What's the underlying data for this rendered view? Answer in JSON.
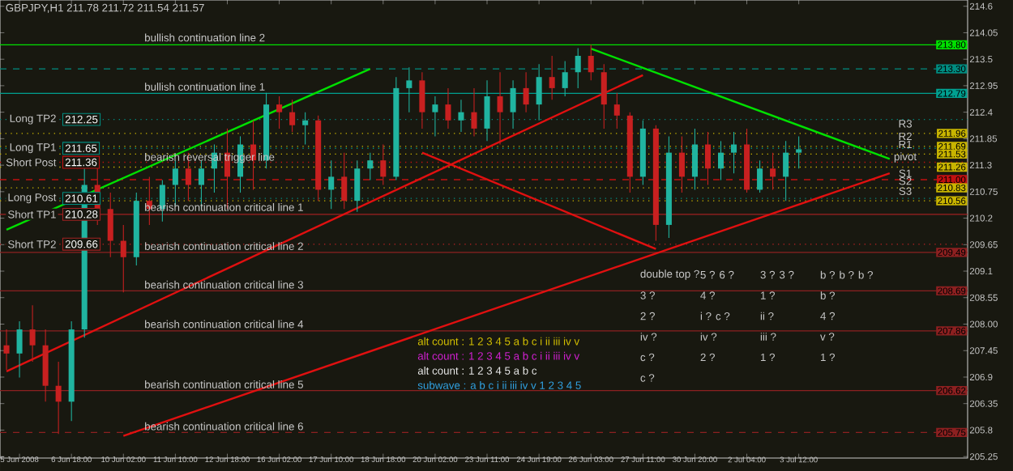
{
  "chart_data": {
    "type": "candlestick",
    "title": "GBPJPY,H1 211.78 211.72 211.54 211.57",
    "categories": [
      null,
      "5 Jun 2008",
      null,
      null,
      null,
      "6 Jun 18:00",
      null,
      null,
      null,
      "10 Jun 02:00",
      null,
      null,
      null,
      "11 Jun 10:00",
      null,
      null,
      null,
      "12 Jun 18:00",
      null,
      null,
      null,
      "16 Jun 02:00",
      null,
      null,
      null,
      "17 Jun 10:00",
      null,
      null,
      null,
      "18 Jun 18:00",
      null,
      null,
      null,
      "20 Jun 02:00",
      null,
      null,
      null,
      "23 Jun 11:00",
      null,
      null,
      null,
      "24 Jun 19:00",
      null,
      null,
      null,
      "26 Jun 03:00",
      null,
      null,
      null,
      "27 Jun 11:00",
      null,
      null,
      null,
      "30 Jun 20:00",
      null,
      null,
      null,
      "2 Jul 04:00",
      null,
      null,
      null,
      "3 Jul 12:00",
      null,
      null,
      null,
      null,
      null,
      null,
      null,
      null,
      null,
      null,
      null,
      null,
      null
    ],
    "ohlc": [
      [
        207.56,
        207.89,
        207.05,
        207.39
      ],
      [
        207.39,
        208.06,
        206.89,
        207.89
      ],
      [
        207.89,
        208.39,
        207.22,
        207.56
      ],
      [
        207.56,
        207.89,
        206.39,
        206.72
      ],
      [
        206.72,
        207.22,
        205.72,
        206.39
      ],
      [
        206.39,
        208.06,
        205.99,
        207.89
      ],
      [
        207.89,
        211.23,
        207.72,
        210.89
      ],
      [
        210.89,
        211.4,
        210.06,
        210.39
      ],
      [
        210.39,
        210.73,
        209.39,
        209.73
      ],
      [
        209.73,
        210.06,
        208.66,
        209.39
      ],
      [
        209.39,
        210.73,
        209.22,
        210.56
      ],
      [
        210.56,
        211.06,
        210.06,
        210.39
      ],
      [
        210.39,
        210.99,
        210.13,
        210.89
      ],
      [
        210.89,
        211.4,
        210.46,
        211.23
      ],
      [
        211.23,
        211.56,
        210.56,
        210.89
      ],
      [
        210.89,
        211.4,
        210.39,
        211.23
      ],
      [
        211.23,
        211.73,
        210.73,
        211.56
      ],
      [
        211.56,
        212.06,
        210.39,
        211.06
      ],
      [
        211.06,
        211.9,
        210.73,
        211.73
      ],
      [
        211.73,
        212.23,
        210.79,
        211.4
      ],
      [
        211.4,
        212.8,
        211.23,
        212.56
      ],
      [
        212.56,
        212.73,
        212.06,
        212.4
      ],
      [
        212.4,
        212.66,
        211.99,
        212.13
      ],
      [
        212.13,
        212.4,
        211.73,
        212.23
      ],
      [
        212.23,
        212.33,
        210.56,
        210.79
      ],
      [
        210.79,
        211.4,
        210.39,
        211.06
      ],
      [
        211.06,
        211.56,
        210.39,
        210.56
      ],
      [
        210.56,
        211.4,
        210.33,
        211.23
      ],
      [
        211.23,
        211.56,
        210.99,
        211.4
      ],
      [
        211.4,
        211.73,
        210.89,
        211.06
      ],
      [
        211.06,
        213.13,
        210.99,
        212.9
      ],
      [
        212.9,
        213.33,
        212.4,
        213.06
      ],
      [
        213.06,
        213.23,
        212.06,
        212.4
      ],
      [
        212.4,
        212.73,
        211.9,
        212.56
      ],
      [
        212.56,
        212.9,
        212.06,
        212.23
      ],
      [
        212.23,
        212.66,
        211.99,
        212.4
      ],
      [
        212.4,
        212.9,
        211.9,
        212.06
      ],
      [
        212.06,
        213.06,
        211.8,
        212.73
      ],
      [
        212.73,
        213.23,
        211.73,
        212.4
      ],
      [
        212.4,
        213.06,
        212.06,
        212.9
      ],
      [
        212.9,
        213.23,
        212.4,
        212.56
      ],
      [
        212.56,
        213.4,
        212.23,
        213.13
      ],
      [
        213.13,
        213.57,
        212.66,
        212.9
      ],
      [
        212.9,
        213.46,
        212.73,
        213.23
      ],
      [
        213.23,
        213.73,
        212.9,
        213.57
      ],
      [
        213.57,
        213.8,
        213.06,
        213.23
      ],
      [
        213.23,
        213.4,
        212.06,
        212.56
      ],
      [
        212.56,
        212.8,
        212.06,
        212.33
      ],
      [
        212.33,
        212.4,
        210.73,
        211.06
      ],
      [
        211.06,
        212.23,
        210.89,
        212.06
      ],
      [
        212.06,
        212.13,
        209.73,
        210.06
      ],
      [
        210.06,
        211.9,
        209.79,
        211.56
      ],
      [
        211.56,
        211.9,
        210.73,
        211.06
      ],
      [
        211.06,
        212.06,
        210.79,
        211.73
      ],
      [
        211.73,
        211.99,
        210.89,
        211.23
      ],
      [
        211.23,
        211.8,
        210.99,
        211.56
      ],
      [
        211.56,
        211.99,
        211.13,
        211.73
      ],
      [
        211.73,
        212.06,
        210.73,
        210.79
      ],
      [
        210.79,
        211.4,
        210.73,
        211.23
      ],
      [
        211.23,
        211.56,
        210.79,
        211.06
      ],
      [
        211.06,
        211.8,
        210.56,
        211.56
      ],
      [
        211.56,
        211.9,
        211.23,
        211.63
      ],
      null,
      null,
      null,
      null,
      null,
      null,
      null,
      null,
      null,
      null,
      null,
      null,
      null
    ],
    "series": [
      {
        "type": "line",
        "color": "#00e000",
        "values": [
          209.96,
          null,
          null,
          null,
          null,
          null,
          null,
          null,
          null,
          null,
          null,
          null,
          null,
          null,
          null,
          null,
          null,
          null,
          null,
          null,
          null,
          null,
          null,
          null,
          null,
          null,
          null,
          null,
          213.3,
          null,
          null,
          null,
          null,
          null,
          null,
          null,
          null,
          null,
          null,
          null,
          null,
          null,
          null,
          null,
          null,
          null,
          null,
          null,
          null,
          null,
          null,
          null,
          null,
          null,
          null,
          null,
          null,
          null,
          null,
          null,
          null,
          null,
          null,
          null,
          null,
          null,
          null,
          null,
          null,
          null,
          null,
          null,
          null,
          null,
          null
        ]
      },
      {
        "type": "line",
        "color": "#00e000",
        "values": [
          null,
          null,
          null,
          null,
          null,
          null,
          null,
          null,
          null,
          null,
          null,
          null,
          null,
          null,
          null,
          null,
          null,
          null,
          null,
          null,
          null,
          null,
          null,
          null,
          null,
          null,
          null,
          null,
          null,
          null,
          null,
          null,
          null,
          null,
          null,
          null,
          null,
          null,
          null,
          null,
          null,
          null,
          null,
          null,
          null,
          213.72,
          null,
          null,
          null,
          null,
          null,
          null,
          null,
          null,
          null,
          null,
          null,
          null,
          null,
          null,
          null,
          null,
          null,
          null,
          null,
          null,
          null,
          null,
          211.43,
          null,
          null,
          null,
          null,
          null,
          null
        ]
      },
      {
        "type": "line",
        "color": "#e01010",
        "values": [
          207.02,
          null,
          null,
          null,
          null,
          null,
          null,
          null,
          null,
          null,
          null,
          null,
          null,
          null,
          null,
          null,
          null,
          null,
          null,
          null,
          null,
          null,
          null,
          null,
          null,
          null,
          null,
          null,
          null,
          null,
          null,
          null,
          null,
          null,
          null,
          null,
          null,
          null,
          null,
          null,
          null,
          null,
          null,
          null,
          null,
          null,
          null,
          null,
          null,
          213.17,
          null,
          null,
          null,
          null,
          null,
          null,
          null,
          null,
          null,
          null,
          null,
          null,
          null,
          null,
          null,
          null,
          null,
          null,
          null,
          null,
          null,
          null,
          null,
          null,
          null
        ]
      },
      {
        "type": "line",
        "color": "#e01010",
        "values": [
          null,
          null,
          null,
          null,
          null,
          null,
          null,
          null,
          null,
          205.68,
          null,
          null,
          null,
          null,
          null,
          null,
          null,
          null,
          null,
          null,
          null,
          null,
          null,
          null,
          null,
          null,
          null,
          null,
          null,
          null,
          null,
          null,
          null,
          null,
          null,
          null,
          null,
          null,
          null,
          null,
          null,
          null,
          null,
          null,
          null,
          null,
          null,
          null,
          null,
          null,
          null,
          null,
          null,
          null,
          null,
          null,
          null,
          null,
          null,
          null,
          null,
          null,
          null,
          null,
          null,
          null,
          null,
          null,
          211.13,
          null,
          null,
          null,
          null,
          null,
          null
        ]
      },
      {
        "type": "line",
        "color": "#e01010",
        "values": [
          null,
          null,
          null,
          null,
          null,
          null,
          null,
          null,
          null,
          null,
          null,
          null,
          null,
          null,
          null,
          null,
          null,
          null,
          null,
          null,
          null,
          null,
          null,
          null,
          null,
          null,
          null,
          null,
          null,
          null,
          null,
          null,
          211.56,
          null,
          null,
          null,
          null,
          null,
          null,
          null,
          null,
          null,
          null,
          null,
          null,
          null,
          null,
          null,
          null,
          null,
          209.56,
          null,
          null,
          null,
          null,
          null,
          null,
          null,
          null,
          null,
          null,
          null,
          null,
          null,
          null,
          null,
          null,
          null,
          null,
          null,
          null,
          null,
          null,
          null,
          null
        ]
      }
    ],
    "ylim": [
      205.22,
      214.73
    ],
    "yticks": [
      214.6,
      214.05,
      213.5,
      212.95,
      212.4,
      211.85,
      211.3,
      210.75,
      210.2,
      209.65,
      209.1,
      208.55,
      {
        "value": 208,
        "label": "208.00"
      },
      207.45,
      206.9,
      206.35,
      205.8,
      205.25
    ],
    "ref_lines": [
      {
        "axis": "y",
        "value": 213.8,
        "color": "#00e000",
        "label": "213.80"
      },
      {
        "axis": "y",
        "value": 213.3,
        "color": "#008c80",
        "line_style": "dashed",
        "label": "213.30"
      },
      {
        "axis": "y",
        "value": 212.79,
        "color": "#00a090",
        "label": "212.79"
      },
      {
        "axis": "y",
        "value": 212.25,
        "color": "#008c80",
        "line_style": "dotted",
        "label": "212.25"
      },
      {
        "axis": "y",
        "value": 211.96,
        "color": "#c8b400",
        "line_style": "dotted",
        "label": "211.96"
      },
      {
        "axis": "y",
        "value": 211.69,
        "color": "#c8b400",
        "line_style": "dotted",
        "label": "211.69"
      },
      {
        "axis": "y",
        "value": 211.65,
        "color": "#008c80",
        "line_style": "dotted",
        "label": "211.65"
      },
      {
        "axis": "y",
        "value": 211.53,
        "color": "#c8b400",
        "line_style": "dotted",
        "label": "211.53"
      },
      {
        "axis": "y",
        "value": 211.36,
        "color": "#c01010",
        "line_style": "dotted",
        "label": "211.36"
      },
      {
        "axis": "y",
        "value": 211.26,
        "color": "#c8b400",
        "line_style": "dotted",
        "label": "211.26"
      },
      {
        "axis": "y",
        "value": 211.0,
        "color": "#c01010",
        "line_style": "dashed",
        "label": "211.00"
      },
      {
        "axis": "y",
        "value": 210.83,
        "color": "#c8b400",
        "line_style": "dotted",
        "label": "210.83"
      },
      {
        "axis": "y",
        "value": 210.61,
        "color": "#008c80",
        "line_style": "dotted",
        "label": "210.61"
      },
      {
        "axis": "y",
        "value": 210.56,
        "color": "#c8b400",
        "line_style": "dotted",
        "label": "210.56"
      },
      {
        "axis": "y",
        "value": 210.28,
        "color": "#a02020",
        "label": "210.28"
      },
      {
        "axis": "y",
        "value": 209.66,
        "color": "#a02020",
        "line_style": "dotted",
        "label": "209.66"
      },
      {
        "axis": "y",
        "value": 209.49,
        "color": "#8c2020",
        "label": "209.49"
      },
      {
        "axis": "y",
        "value": 208.69,
        "color": "#8c2020",
        "label": "208.69"
      },
      {
        "axis": "y",
        "value": 207.86,
        "color": "#8c2020",
        "label": "207.86"
      },
      {
        "axis": "y",
        "value": 206.62,
        "color": "#8c2020",
        "label": "206.62"
      },
      {
        "axis": "y",
        "value": 205.75,
        "color": "#8c2020",
        "line_style": "dashed",
        "label": "205.75"
      }
    ],
    "annotations": [
      {
        "text": "bullish continuation line 2",
        "y": 213.95
      },
      {
        "text": "bullish continuation line 1",
        "y": 212.93
      },
      {
        "text": "bearish reversal trigger line",
        "y": 211.45
      },
      {
        "text": "bearish continuation critical line 1",
        "y": 210.43
      },
      {
        "text": "bearish continuation critical line 2",
        "y": 209.62
      },
      {
        "text": "bearish continuation critical line 3",
        "y": 208.82
      },
      {
        "text": "bearish continuation critical line 4",
        "y": 208.0
      },
      {
        "text": "bearish continuation critical line 5",
        "y": 206.75
      },
      {
        "text": "bearish continuation critical line 6",
        "y": 205.88
      },
      {
        "text": "Long TP2",
        "y": 212.25
      },
      {
        "text": "Long TP1",
        "y": 211.65
      },
      {
        "text": "Short Post",
        "y": 211.36
      },
      {
        "text": "Long Post",
        "y": 210.61
      },
      {
        "text": "Short TP1",
        "y": 210.28
      },
      {
        "text": "Short TP2",
        "y": 209.66
      },
      {
        "text": "R3",
        "y": 212.16
      },
      {
        "text": "R2",
        "y": 211.9
      },
      {
        "text": "R1",
        "y": 211.73
      },
      {
        "text": "pivot",
        "y": 211.46
      },
      {
        "text": "S1",
        "y": 211.13
      },
      {
        "text": "S2",
        "y": 210.97
      },
      {
        "text": "S3",
        "y": 210.76
      },
      "alt count : 1 2 3 4 5 a b c i ii iii iv v",
      "alt count : 1 2 3 4 5 a b c i ii iii iv v",
      "alt count : 1 2 3 4 5 a b c",
      "subwave : a b c i ii iii iv v 1 2 3 4 5",
      "double top ?",
      "5 ? 6 ?",
      "3 ? 3 ?",
      "b ? b ? b ?",
      "3 ?",
      "4 ?",
      "1 ?",
      "b ?",
      "2 ?",
      "i ? c ?",
      "ii ?",
      "4 ?",
      "iv ?",
      "iv ?",
      "iii ?",
      "v ?",
      "c ?",
      "2 ?",
      "1 ?",
      "1 ?",
      "c ?"
    ]
  }
}
